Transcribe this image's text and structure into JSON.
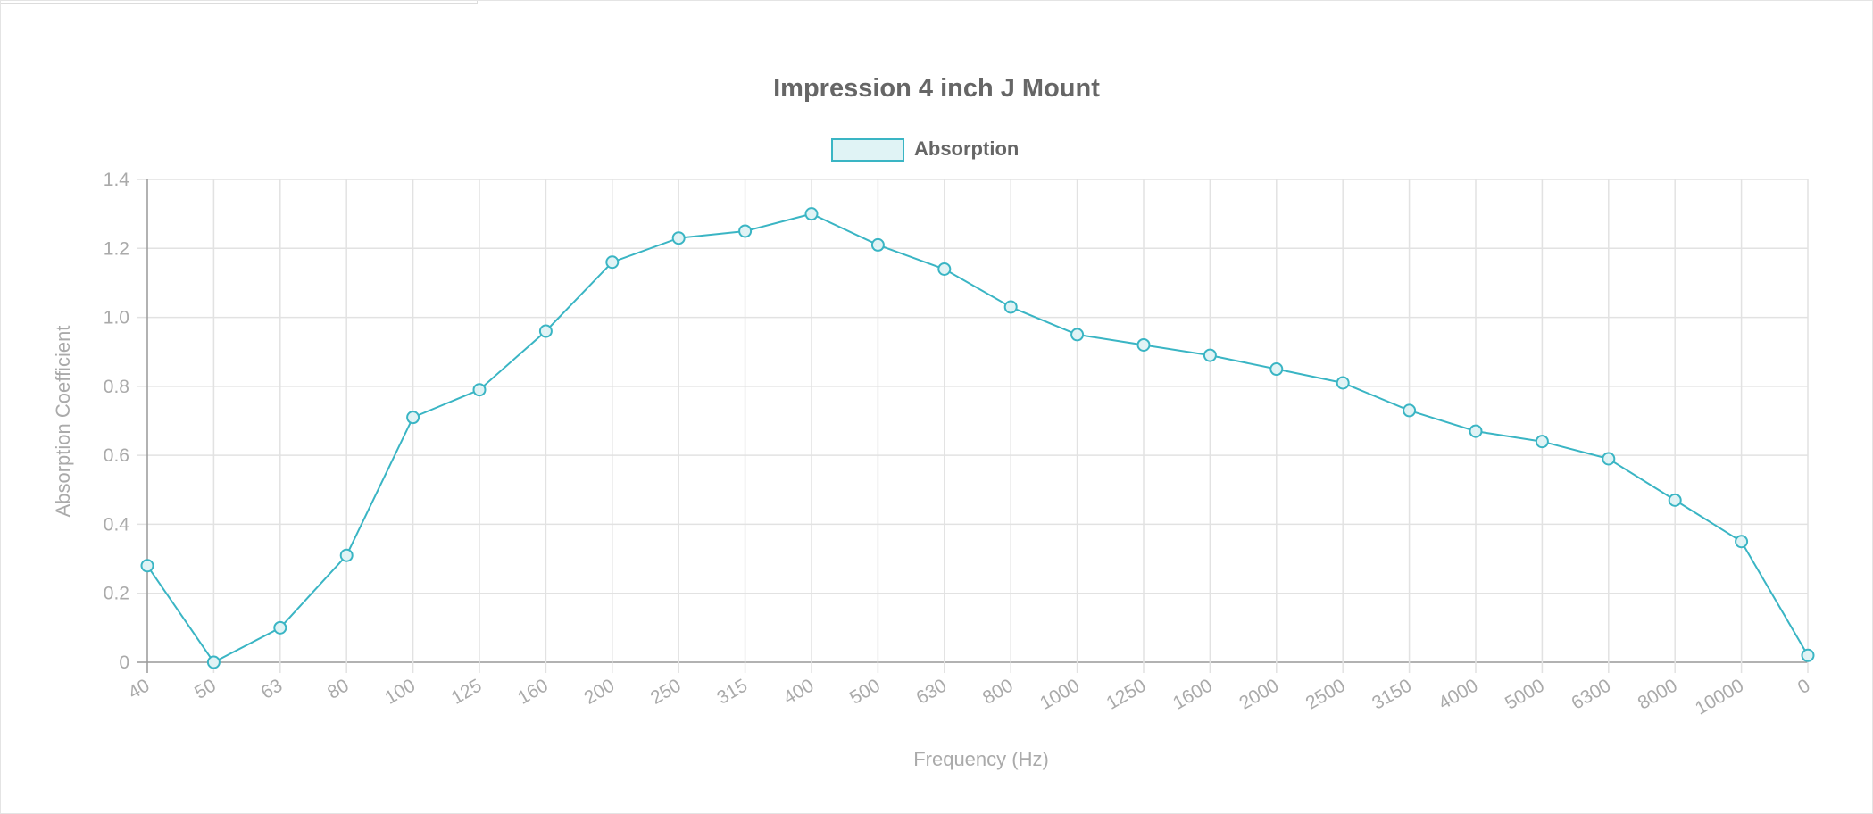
{
  "chart_data": {
    "type": "line",
    "title": "Impression 4 inch J Mount",
    "xlabel": "Frequency (Hz)",
    "ylabel": "Absorption Coefficient",
    "categories": [
      "40",
      "50",
      "63",
      "80",
      "100",
      "125",
      "160",
      "200",
      "250",
      "315",
      "400",
      "500",
      "630",
      "800",
      "1000",
      "1250",
      "1600",
      "2000",
      "2500",
      "3150",
      "4000",
      "5000",
      "6300",
      "8000",
      "10000",
      "0"
    ],
    "series": [
      {
        "name": "Absorption",
        "color": "#3ab5c4",
        "fill": "#e0f3f5",
        "values": [
          0.28,
          0.0,
          0.1,
          0.31,
          0.71,
          0.79,
          0.96,
          1.16,
          1.23,
          1.25,
          1.3,
          1.21,
          1.14,
          1.03,
          0.95,
          0.92,
          0.89,
          0.85,
          0.81,
          0.73,
          0.67,
          0.64,
          0.59,
          0.47,
          0.35,
          0.02
        ]
      }
    ],
    "ylim": [
      0,
      1.4
    ],
    "yticks": [
      "0",
      "0.2",
      "0.4",
      "0.6",
      "0.8",
      "1.0",
      "1.2",
      "1.4"
    ],
    "grid": true,
    "legend_position": "top"
  }
}
